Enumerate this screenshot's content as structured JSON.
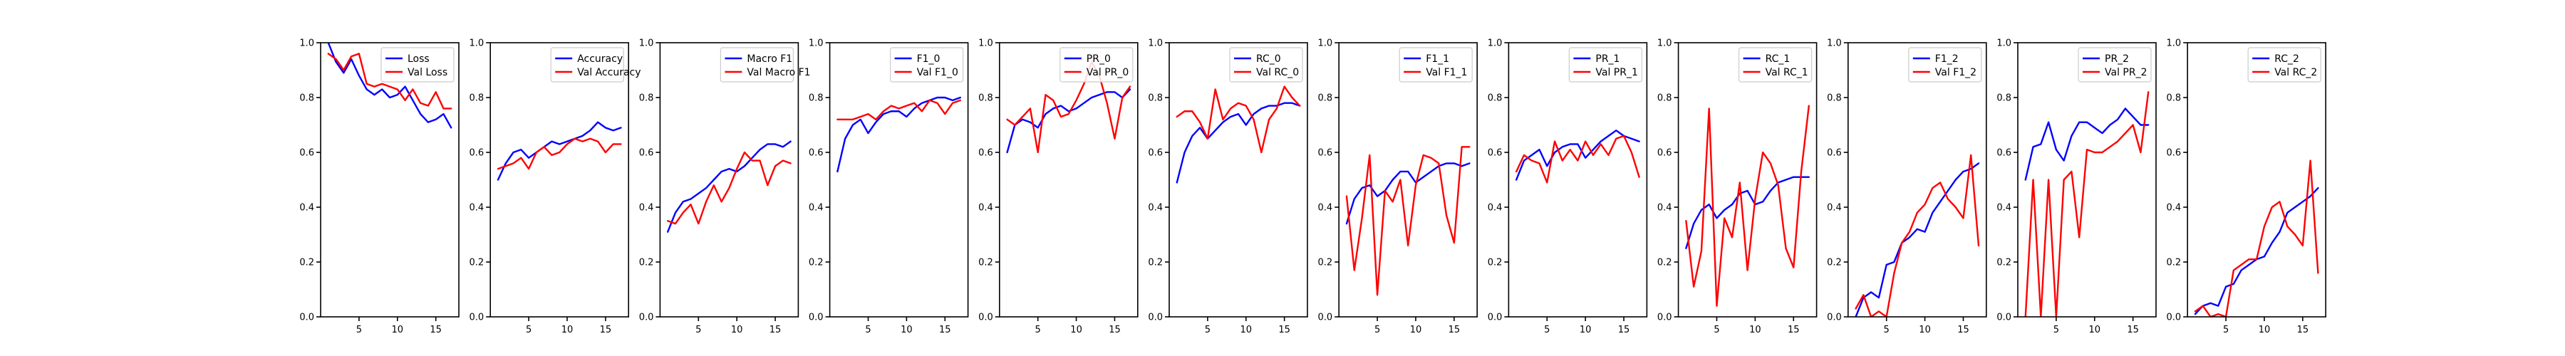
{
  "colors": {
    "train": "#0000ff",
    "val": "#ff0000"
  },
  "chart_data": [
    {
      "type": "line",
      "xlim": [
        0,
        18
      ],
      "ylim": [
        0,
        1.0
      ],
      "xticks": [
        "5",
        "10",
        "15"
      ],
      "yticks": [
        "0.0",
        "0.2",
        "0.4",
        "0.6",
        "0.8",
        "1.0"
      ],
      "x": [
        1,
        2,
        3,
        4,
        5,
        6,
        7,
        8,
        9,
        10,
        11,
        12,
        13,
        14,
        15,
        16,
        17
      ],
      "series": [
        {
          "name": "Loss",
          "values": [
            1.0,
            0.93,
            0.89,
            0.94,
            0.88,
            0.83,
            0.81,
            0.83,
            0.8,
            0.81,
            0.84,
            0.79,
            0.74,
            0.71,
            0.72,
            0.74,
            0.69
          ]
        },
        {
          "name": "Val Loss",
          "values": [
            0.96,
            0.94,
            0.9,
            0.95,
            0.96,
            0.85,
            0.84,
            0.85,
            0.84,
            0.83,
            0.79,
            0.83,
            0.78,
            0.77,
            0.82,
            0.76,
            0.76
          ]
        }
      ]
    },
    {
      "type": "line",
      "xlim": [
        0,
        18
      ],
      "ylim": [
        0,
        1.0
      ],
      "xticks": [
        "5",
        "10",
        "15"
      ],
      "yticks": [
        "0.0",
        "0.2",
        "0.4",
        "0.6",
        "0.8",
        "1.0"
      ],
      "x": [
        1,
        2,
        3,
        4,
        5,
        6,
        7,
        8,
        9,
        10,
        11,
        12,
        13,
        14,
        15,
        16,
        17
      ],
      "series": [
        {
          "name": "Accuracy",
          "values": [
            0.5,
            0.56,
            0.6,
            0.61,
            0.58,
            0.6,
            0.62,
            0.64,
            0.63,
            0.64,
            0.65,
            0.66,
            0.68,
            0.71,
            0.69,
            0.68,
            0.69
          ]
        },
        {
          "name": "Val Accuracy",
          "values": [
            0.54,
            0.55,
            0.56,
            0.58,
            0.54,
            0.6,
            0.62,
            0.59,
            0.6,
            0.63,
            0.65,
            0.64,
            0.65,
            0.64,
            0.6,
            0.63,
            0.63
          ]
        }
      ]
    },
    {
      "type": "line",
      "xlim": [
        0,
        18
      ],
      "ylim": [
        0,
        1.0
      ],
      "xticks": [
        "5",
        "10",
        "15"
      ],
      "yticks": [
        "0.0",
        "0.2",
        "0.4",
        "0.6",
        "0.8",
        "1.0"
      ],
      "x": [
        1,
        2,
        3,
        4,
        5,
        6,
        7,
        8,
        9,
        10,
        11,
        12,
        13,
        14,
        15,
        16,
        17
      ],
      "series": [
        {
          "name": "Macro F1",
          "values": [
            0.31,
            0.38,
            0.42,
            0.43,
            0.45,
            0.47,
            0.5,
            0.53,
            0.54,
            0.53,
            0.55,
            0.58,
            0.61,
            0.63,
            0.63,
            0.62,
            0.64
          ]
        },
        {
          "name": "Val Macro F1",
          "values": [
            0.35,
            0.34,
            0.38,
            0.41,
            0.34,
            0.42,
            0.48,
            0.42,
            0.47,
            0.54,
            0.6,
            0.57,
            0.57,
            0.48,
            0.55,
            0.57,
            0.56
          ]
        }
      ]
    },
    {
      "type": "line",
      "xlim": [
        0,
        18
      ],
      "ylim": [
        0,
        1.0
      ],
      "xticks": [
        "5",
        "10",
        "15"
      ],
      "yticks": [
        "0.0",
        "0.2",
        "0.4",
        "0.6",
        "0.8",
        "1.0"
      ],
      "x": [
        1,
        2,
        3,
        4,
        5,
        6,
        7,
        8,
        9,
        10,
        11,
        12,
        13,
        14,
        15,
        16,
        17
      ],
      "series": [
        {
          "name": "F1_0",
          "values": [
            0.53,
            0.65,
            0.7,
            0.72,
            0.67,
            0.71,
            0.74,
            0.75,
            0.75,
            0.73,
            0.76,
            0.78,
            0.79,
            0.8,
            0.8,
            0.79,
            0.8
          ]
        },
        {
          "name": "Val F1_0",
          "values": [
            0.72,
            0.72,
            0.72,
            0.73,
            0.74,
            0.72,
            0.75,
            0.77,
            0.76,
            0.77,
            0.78,
            0.75,
            0.79,
            0.78,
            0.74,
            0.78,
            0.79
          ]
        }
      ]
    },
    {
      "type": "line",
      "xlim": [
        0,
        18
      ],
      "ylim": [
        0,
        1.0
      ],
      "xticks": [
        "5",
        "10",
        "15"
      ],
      "yticks": [
        "0.0",
        "0.2",
        "0.4",
        "0.6",
        "0.8",
        "1.0"
      ],
      "x": [
        1,
        2,
        3,
        4,
        5,
        6,
        7,
        8,
        9,
        10,
        11,
        12,
        13,
        14,
        15,
        16,
        17
      ],
      "series": [
        {
          "name": "PR_0",
          "values": [
            0.6,
            0.7,
            0.72,
            0.71,
            0.69,
            0.74,
            0.76,
            0.77,
            0.75,
            0.76,
            0.78,
            0.8,
            0.81,
            0.82,
            0.82,
            0.8,
            0.83
          ]
        },
        {
          "name": "Val PR_0",
          "values": [
            0.72,
            0.7,
            0.73,
            0.76,
            0.6,
            0.81,
            0.79,
            0.73,
            0.74,
            0.79,
            0.85,
            0.93,
            0.88,
            0.78,
            0.65,
            0.8,
            0.84
          ]
        }
      ]
    },
    {
      "type": "line",
      "xlim": [
        0,
        18
      ],
      "ylim": [
        0,
        1.0
      ],
      "xticks": [
        "5",
        "10",
        "15"
      ],
      "yticks": [
        "0.0",
        "0.2",
        "0.4",
        "0.6",
        "0.8",
        "1.0"
      ],
      "x": [
        1,
        2,
        3,
        4,
        5,
        6,
        7,
        8,
        9,
        10,
        11,
        12,
        13,
        14,
        15,
        16,
        17
      ],
      "series": [
        {
          "name": "RC_0",
          "values": [
            0.49,
            0.6,
            0.66,
            0.69,
            0.65,
            0.68,
            0.71,
            0.73,
            0.74,
            0.7,
            0.74,
            0.76,
            0.77,
            0.77,
            0.78,
            0.78,
            0.77
          ]
        },
        {
          "name": "Val RC_0",
          "values": [
            0.73,
            0.75,
            0.75,
            0.71,
            0.65,
            0.83,
            0.72,
            0.76,
            0.78,
            0.77,
            0.72,
            0.6,
            0.72,
            0.76,
            0.84,
            0.8,
            0.77
          ]
        }
      ]
    },
    {
      "type": "line",
      "xlim": [
        0,
        18
      ],
      "ylim": [
        0,
        1.0
      ],
      "xticks": [
        "5",
        "10",
        "15"
      ],
      "yticks": [
        "0.0",
        "0.2",
        "0.4",
        "0.6",
        "0.8",
        "1.0"
      ],
      "x": [
        1,
        2,
        3,
        4,
        5,
        6,
        7,
        8,
        9,
        10,
        11,
        12,
        13,
        14,
        15,
        16,
        17
      ],
      "series": [
        {
          "name": "F1_1",
          "values": [
            0.34,
            0.43,
            0.47,
            0.48,
            0.44,
            0.46,
            0.5,
            0.53,
            0.53,
            0.49,
            0.51,
            0.53,
            0.55,
            0.56,
            0.56,
            0.55,
            0.56
          ]
        },
        {
          "name": "Val F1_1",
          "values": [
            0.44,
            0.17,
            0.36,
            0.59,
            0.08,
            0.46,
            0.42,
            0.5,
            0.26,
            0.48,
            0.59,
            0.58,
            0.56,
            0.37,
            0.27,
            0.62,
            0.62
          ]
        }
      ]
    },
    {
      "type": "line",
      "xlim": [
        0,
        18
      ],
      "ylim": [
        0,
        1.0
      ],
      "xticks": [
        "5",
        "10",
        "15"
      ],
      "yticks": [
        "0.0",
        "0.2",
        "0.4",
        "0.6",
        "0.8",
        "1.0"
      ],
      "x": [
        1,
        2,
        3,
        4,
        5,
        6,
        7,
        8,
        9,
        10,
        11,
        12,
        13,
        14,
        15,
        16,
        17
      ],
      "series": [
        {
          "name": "PR_1",
          "values": [
            0.5,
            0.57,
            0.59,
            0.61,
            0.55,
            0.6,
            0.62,
            0.63,
            0.63,
            0.58,
            0.61,
            0.64,
            0.66,
            0.68,
            0.66,
            0.65,
            0.64
          ]
        },
        {
          "name": "Val PR_1",
          "values": [
            0.53,
            0.59,
            0.57,
            0.56,
            0.49,
            0.64,
            0.57,
            0.61,
            0.57,
            0.64,
            0.59,
            0.63,
            0.59,
            0.65,
            0.66,
            0.6,
            0.51
          ]
        }
      ]
    },
    {
      "type": "line",
      "xlim": [
        0,
        18
      ],
      "ylim": [
        0,
        1.0
      ],
      "xticks": [
        "5",
        "10",
        "15"
      ],
      "yticks": [
        "0.0",
        "0.2",
        "0.4",
        "0.6",
        "0.8",
        "1.0"
      ],
      "x": [
        1,
        2,
        3,
        4,
        5,
        6,
        7,
        8,
        9,
        10,
        11,
        12,
        13,
        14,
        15,
        16,
        17
      ],
      "series": [
        {
          "name": "RC_1",
          "values": [
            0.25,
            0.34,
            0.39,
            0.41,
            0.36,
            0.39,
            0.41,
            0.45,
            0.46,
            0.41,
            0.42,
            0.46,
            0.49,
            0.5,
            0.51,
            0.51,
            0.51
          ]
        },
        {
          "name": "Val RC_1",
          "values": [
            0.35,
            0.11,
            0.24,
            0.76,
            0.04,
            0.36,
            0.29,
            0.49,
            0.17,
            0.43,
            0.6,
            0.56,
            0.48,
            0.25,
            0.18,
            0.53,
            0.77
          ]
        }
      ]
    },
    {
      "type": "line",
      "xlim": [
        0,
        18
      ],
      "ylim": [
        0,
        1.0
      ],
      "xticks": [
        "5",
        "10",
        "15"
      ],
      "yticks": [
        "0.0",
        "0.2",
        "0.4",
        "0.6",
        "0.8",
        "1.0"
      ],
      "x": [
        1,
        2,
        3,
        4,
        5,
        6,
        7,
        8,
        9,
        10,
        11,
        12,
        13,
        14,
        15,
        16,
        17
      ],
      "series": [
        {
          "name": "F1_2",
          "values": [
            0.0,
            0.07,
            0.09,
            0.07,
            0.19,
            0.2,
            0.27,
            0.29,
            0.32,
            0.31,
            0.38,
            0.42,
            0.46,
            0.5,
            0.53,
            0.54,
            0.56
          ]
        },
        {
          "name": "Val F1_2",
          "values": [
            0.03,
            0.08,
            0.0,
            0.02,
            0.0,
            0.16,
            0.27,
            0.31,
            0.38,
            0.41,
            0.47,
            0.49,
            0.43,
            0.4,
            0.36,
            0.59,
            0.26
          ]
        }
      ]
    },
    {
      "type": "line",
      "xlim": [
        0,
        18
      ],
      "ylim": [
        0,
        1.0
      ],
      "xticks": [
        "5",
        "10",
        "15"
      ],
      "yticks": [
        "0.0",
        "0.2",
        "0.4",
        "0.6",
        "0.8",
        "1.0"
      ],
      "x": [
        1,
        2,
        3,
        4,
        5,
        6,
        7,
        8,
        9,
        10,
        11,
        12,
        13,
        14,
        15,
        16,
        17
      ],
      "series": [
        {
          "name": "PR_2",
          "values": [
            0.5,
            0.62,
            0.63,
            0.71,
            0.61,
            0.57,
            0.66,
            0.71,
            0.71,
            0.69,
            0.67,
            0.7,
            0.72,
            0.76,
            0.73,
            0.7,
            0.7
          ]
        },
        {
          "name": "Val PR_2",
          "values": [
            0.0,
            0.5,
            0.0,
            0.5,
            0.0,
            0.5,
            0.53,
            0.29,
            0.61,
            0.6,
            0.6,
            0.62,
            0.64,
            0.67,
            0.7,
            0.6,
            0.82
          ]
        }
      ]
    },
    {
      "type": "line",
      "xlim": [
        0,
        18
      ],
      "ylim": [
        0,
        1.0
      ],
      "xticks": [
        "5",
        "10",
        "15"
      ],
      "yticks": [
        "0.0",
        "0.2",
        "0.4",
        "0.6",
        "0.8",
        "1.0"
      ],
      "x": [
        1,
        2,
        3,
        4,
        5,
        6,
        7,
        8,
        9,
        10,
        11,
        12,
        13,
        14,
        15,
        16,
        17
      ],
      "series": [
        {
          "name": "RC_2",
          "values": [
            0.01,
            0.04,
            0.05,
            0.04,
            0.11,
            0.12,
            0.17,
            0.19,
            0.21,
            0.22,
            0.27,
            0.31,
            0.38,
            0.4,
            0.42,
            0.44,
            0.47
          ]
        },
        {
          "name": "Val RC_2",
          "values": [
            0.02,
            0.04,
            0.0,
            0.01,
            0.0,
            0.17,
            0.19,
            0.21,
            0.21,
            0.33,
            0.4,
            0.42,
            0.33,
            0.3,
            0.26,
            0.57,
            0.16
          ]
        }
      ]
    }
  ]
}
